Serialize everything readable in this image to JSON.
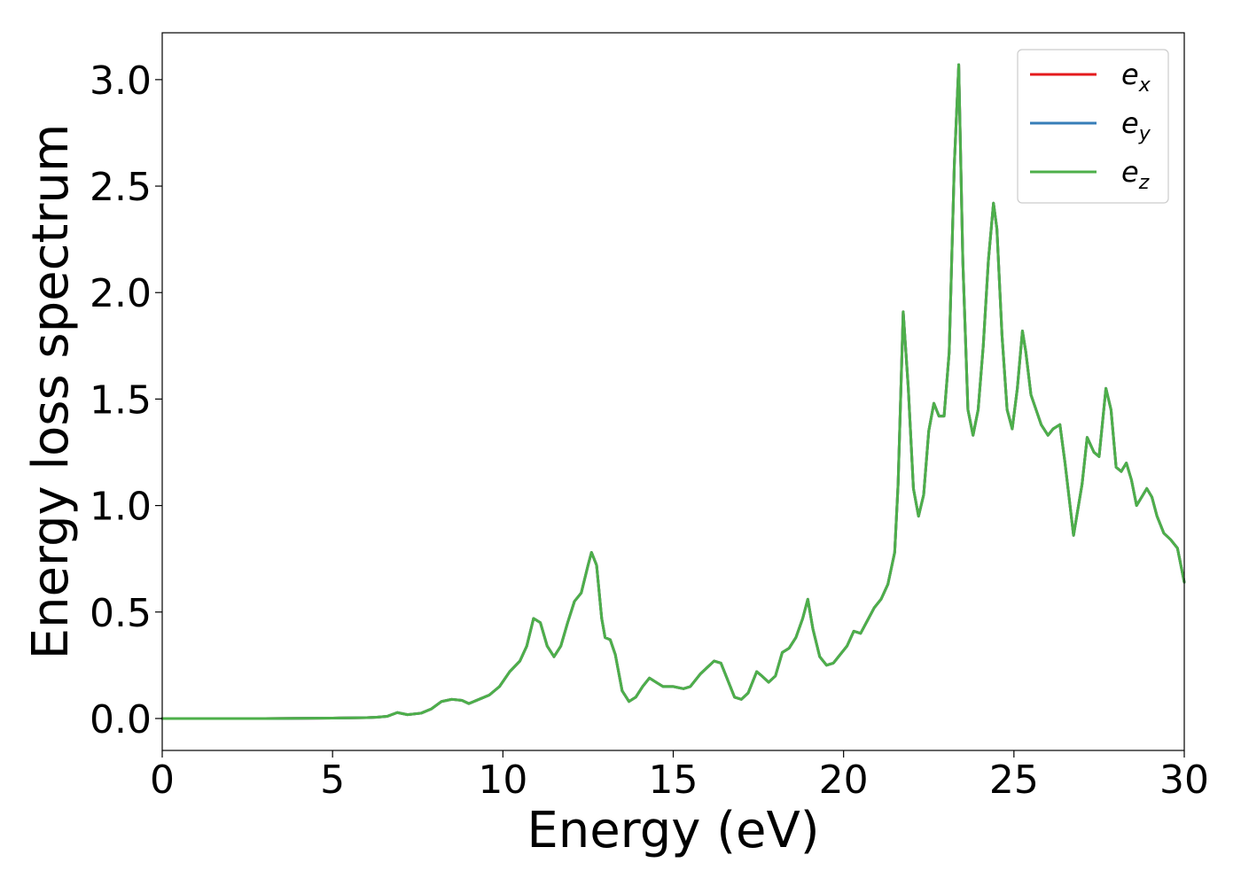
{
  "chart_data": {
    "type": "line",
    "title": "",
    "xlabel": "Energy (eV)",
    "ylabel": "Energy loss spectrum",
    "xlim": [
      0,
      30
    ],
    "ylim": [
      -0.15,
      3.22
    ],
    "xticks": [
      0,
      5,
      10,
      15,
      20,
      25,
      30
    ],
    "xtick_labels": [
      "0",
      "5",
      "10",
      "15",
      "20",
      "25",
      "30"
    ],
    "yticks": [
      0.0,
      0.5,
      1.0,
      1.5,
      2.0,
      2.5,
      3.0
    ],
    "ytick_labels": [
      "0.0",
      "0.5",
      "1.0",
      "1.5",
      "2.0",
      "2.5",
      "3.0"
    ],
    "grid": false,
    "legend_position": "top-right",
    "x": [
      0,
      1,
      2,
      3,
      4,
      5,
      5.5,
      6,
      6.3,
      6.6,
      6.9,
      7.2,
      7.6,
      7.9,
      8.2,
      8.5,
      8.8,
      9.0,
      9.3,
      9.6,
      9.9,
      10.2,
      10.5,
      10.7,
      10.9,
      11.1,
      11.3,
      11.5,
      11.7,
      11.9,
      12.1,
      12.3,
      12.5,
      12.6,
      12.75,
      12.9,
      13.0,
      13.15,
      13.3,
      13.5,
      13.7,
      13.9,
      14.1,
      14.3,
      14.5,
      14.7,
      15.0,
      15.3,
      15.5,
      15.8,
      16.0,
      16.2,
      16.4,
      16.6,
      16.8,
      17.0,
      17.2,
      17.45,
      17.6,
      17.8,
      18.0,
      18.2,
      18.4,
      18.6,
      18.8,
      18.95,
      19.1,
      19.3,
      19.5,
      19.7,
      19.9,
      20.1,
      20.3,
      20.5,
      20.7,
      20.9,
      21.1,
      21.3,
      21.5,
      21.6,
      21.75,
      21.9,
      22.05,
      22.2,
      22.35,
      22.5,
      22.65,
      22.8,
      22.95,
      23.1,
      23.25,
      23.38,
      23.5,
      23.65,
      23.8,
      23.95,
      24.1,
      24.25,
      24.4,
      24.5,
      24.65,
      24.8,
      24.95,
      25.1,
      25.25,
      25.35,
      25.5,
      25.65,
      25.8,
      26.0,
      26.15,
      26.35,
      26.5,
      26.75,
      27.0,
      27.15,
      27.35,
      27.5,
      27.7,
      27.85,
      28.0,
      28.15,
      28.3,
      28.45,
      28.6,
      28.75,
      28.9,
      29.05,
      29.2,
      29.4,
      29.6,
      29.8,
      30.0
    ],
    "series": [
      {
        "name": "e_x",
        "color": "#e41a1c",
        "values": [
          0,
          0,
          0,
          0,
          0.001,
          0.002,
          0.003,
          0.004,
          0.006,
          0.01,
          0.028,
          0.018,
          0.025,
          0.045,
          0.08,
          0.09,
          0.085,
          0.07,
          0.09,
          0.11,
          0.15,
          0.22,
          0.27,
          0.34,
          0.47,
          0.45,
          0.34,
          0.29,
          0.34,
          0.45,
          0.55,
          0.59,
          0.72,
          0.78,
          0.72,
          0.47,
          0.38,
          0.37,
          0.3,
          0.13,
          0.08,
          0.1,
          0.15,
          0.19,
          0.17,
          0.15,
          0.15,
          0.14,
          0.15,
          0.21,
          0.24,
          0.27,
          0.26,
          0.18,
          0.1,
          0.09,
          0.12,
          0.22,
          0.2,
          0.17,
          0.2,
          0.31,
          0.33,
          0.38,
          0.47,
          0.56,
          0.42,
          0.29,
          0.25,
          0.26,
          0.3,
          0.34,
          0.41,
          0.4,
          0.46,
          0.52,
          0.56,
          0.63,
          0.78,
          1.1,
          1.91,
          1.55,
          1.08,
          0.95,
          1.05,
          1.35,
          1.48,
          1.42,
          1.42,
          1.72,
          2.6,
          3.07,
          2.15,
          1.45,
          1.33,
          1.45,
          1.75,
          2.15,
          2.42,
          2.3,
          1.8,
          1.45,
          1.36,
          1.55,
          1.82,
          1.72,
          1.52,
          1.45,
          1.38,
          1.33,
          1.36,
          1.38,
          1.2,
          0.86,
          1.1,
          1.32,
          1.25,
          1.23,
          1.55,
          1.45,
          1.18,
          1.16,
          1.2,
          1.12,
          1.0,
          1.04,
          1.08,
          1.04,
          0.95,
          0.87,
          0.84,
          0.8,
          0.64
        ]
      },
      {
        "name": "e_y",
        "color": "#377eb8",
        "values": [
          0,
          0,
          0,
          0,
          0.001,
          0.002,
          0.003,
          0.004,
          0.006,
          0.01,
          0.028,
          0.018,
          0.025,
          0.045,
          0.08,
          0.09,
          0.085,
          0.07,
          0.09,
          0.11,
          0.15,
          0.22,
          0.27,
          0.34,
          0.47,
          0.45,
          0.34,
          0.29,
          0.34,
          0.45,
          0.55,
          0.59,
          0.72,
          0.78,
          0.72,
          0.47,
          0.38,
          0.37,
          0.3,
          0.13,
          0.08,
          0.1,
          0.15,
          0.19,
          0.17,
          0.15,
          0.15,
          0.14,
          0.15,
          0.21,
          0.24,
          0.27,
          0.26,
          0.18,
          0.1,
          0.09,
          0.12,
          0.22,
          0.2,
          0.17,
          0.2,
          0.31,
          0.33,
          0.38,
          0.47,
          0.56,
          0.42,
          0.29,
          0.25,
          0.26,
          0.3,
          0.34,
          0.41,
          0.4,
          0.46,
          0.52,
          0.56,
          0.63,
          0.78,
          1.1,
          1.91,
          1.55,
          1.08,
          0.95,
          1.05,
          1.35,
          1.48,
          1.42,
          1.42,
          1.72,
          2.6,
          3.07,
          2.15,
          1.45,
          1.33,
          1.45,
          1.75,
          2.15,
          2.42,
          2.3,
          1.8,
          1.45,
          1.36,
          1.55,
          1.82,
          1.72,
          1.52,
          1.45,
          1.38,
          1.33,
          1.36,
          1.38,
          1.2,
          0.86,
          1.1,
          1.32,
          1.25,
          1.23,
          1.55,
          1.45,
          1.18,
          1.16,
          1.2,
          1.12,
          1.0,
          1.04,
          1.08,
          1.04,
          0.95,
          0.87,
          0.84,
          0.8,
          0.64
        ]
      },
      {
        "name": "e_z",
        "color": "#4daf4a",
        "values": [
          0,
          0,
          0,
          0,
          0.001,
          0.002,
          0.003,
          0.004,
          0.006,
          0.01,
          0.028,
          0.018,
          0.025,
          0.045,
          0.08,
          0.09,
          0.085,
          0.07,
          0.09,
          0.11,
          0.15,
          0.22,
          0.27,
          0.34,
          0.47,
          0.45,
          0.34,
          0.29,
          0.34,
          0.45,
          0.55,
          0.59,
          0.72,
          0.78,
          0.72,
          0.47,
          0.38,
          0.37,
          0.3,
          0.13,
          0.08,
          0.1,
          0.15,
          0.19,
          0.17,
          0.15,
          0.15,
          0.14,
          0.15,
          0.21,
          0.24,
          0.27,
          0.26,
          0.18,
          0.1,
          0.09,
          0.12,
          0.22,
          0.2,
          0.17,
          0.2,
          0.31,
          0.33,
          0.38,
          0.47,
          0.56,
          0.42,
          0.29,
          0.25,
          0.26,
          0.3,
          0.34,
          0.41,
          0.4,
          0.46,
          0.52,
          0.56,
          0.63,
          0.78,
          1.1,
          1.91,
          1.55,
          1.08,
          0.95,
          1.05,
          1.35,
          1.48,
          1.42,
          1.42,
          1.72,
          2.6,
          3.07,
          2.15,
          1.45,
          1.33,
          1.45,
          1.75,
          2.15,
          2.42,
          2.3,
          1.8,
          1.45,
          1.36,
          1.55,
          1.82,
          1.72,
          1.52,
          1.45,
          1.38,
          1.33,
          1.36,
          1.38,
          1.2,
          0.86,
          1.1,
          1.32,
          1.25,
          1.23,
          1.55,
          1.45,
          1.18,
          1.16,
          1.2,
          1.12,
          1.0,
          1.04,
          1.08,
          1.04,
          0.95,
          0.87,
          0.84,
          0.8,
          0.64
        ]
      }
    ],
    "legend": [
      {
        "base": "e",
        "sub": "x",
        "color": "#e41a1c"
      },
      {
        "base": "e",
        "sub": "y",
        "color": "#377eb8"
      },
      {
        "base": "e",
        "sub": "z",
        "color": "#4daf4a"
      }
    ]
  }
}
